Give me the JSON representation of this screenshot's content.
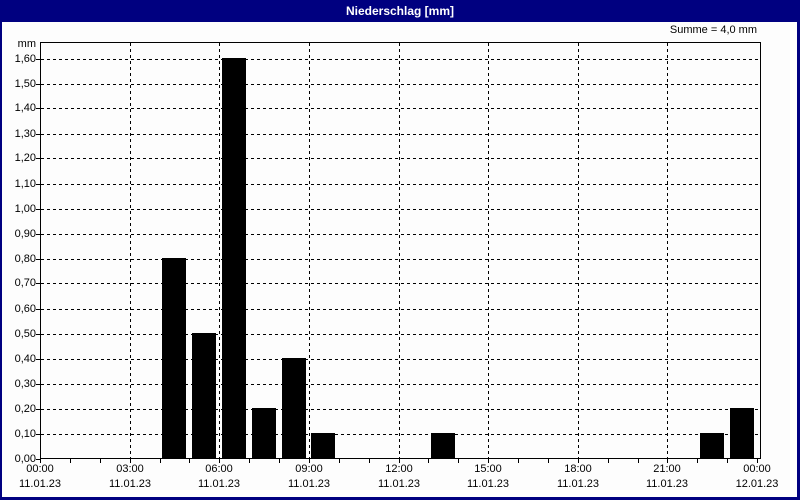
{
  "window": {
    "title": "Niederschlag [mm]",
    "summary": "Summe = 4,0 mm"
  },
  "colors": {
    "titlebar": "#000080",
    "titlebar_text": "#ffffff",
    "background": "#fdfdfd",
    "bar": "#000000",
    "grid": "#000000"
  },
  "chart_data": {
    "type": "bar",
    "title": "Niederschlag [mm]",
    "summary": "Summe = 4,0 mm",
    "total_mm": 4.0,
    "grid": "dashed",
    "y_axis": {
      "label": "mm",
      "min": 0.0,
      "max": 1.6,
      "step": 0.1,
      "decimal_separator": ",",
      "decimals": 2
    },
    "x_axis": {
      "span_hours": 24,
      "tick_interval_hours": 3,
      "minor_tick_hours": 1,
      "ticks": [
        {
          "time": "00:00",
          "date": "11.01.23"
        },
        {
          "time": "03:00",
          "date": "11.01.23"
        },
        {
          "time": "06:00",
          "date": "11.01.23"
        },
        {
          "time": "09:00",
          "date": "11.01.23"
        },
        {
          "time": "12:00",
          "date": "11.01.23"
        },
        {
          "time": "15:00",
          "date": "11.01.23"
        },
        {
          "time": "18:00",
          "date": "11.01.23"
        },
        {
          "time": "21:00",
          "date": "11.01.23"
        },
        {
          "time": "00:00",
          "date": "12.01.23"
        }
      ]
    },
    "bars": [
      {
        "hour": 4,
        "time": "04:00",
        "value": 0.8
      },
      {
        "hour": 5,
        "time": "05:00",
        "value": 0.5
      },
      {
        "hour": 6,
        "time": "06:00",
        "value": 1.6
      },
      {
        "hour": 7,
        "time": "07:00",
        "value": 0.2
      },
      {
        "hour": 8,
        "time": "08:00",
        "value": 0.4
      },
      {
        "hour": 9,
        "time": "09:00",
        "value": 0.1
      },
      {
        "hour": 13,
        "time": "13:00",
        "value": 0.1
      },
      {
        "hour": 22,
        "time": "22:00",
        "value": 0.1
      },
      {
        "hour": 23,
        "time": "23:00",
        "value": 0.2
      }
    ]
  }
}
